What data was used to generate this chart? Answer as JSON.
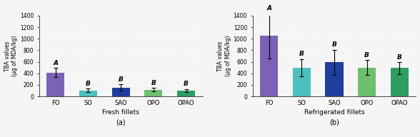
{
  "subplot_a": {
    "title": "Fresh fillets",
    "label": "(a)",
    "categories": [
      "FO",
      "SO",
      "SAO",
      "OPO",
      "OPAO"
    ],
    "values": [
      410,
      105,
      150,
      115,
      100
    ],
    "errors": [
      80,
      30,
      55,
      30,
      30
    ],
    "sig_labels": [
      "A",
      "B",
      "B",
      "B",
      "B"
    ],
    "colors": [
      "#7b62b5",
      "#4dbfbf",
      "#1f3f9e",
      "#6dbf6d",
      "#2d9e5f"
    ],
    "ylabel": "TBA values\n(μg of MDA/kg)"
  },
  "subplot_b": {
    "title": "Refrigerated fillets",
    "label": "(b)",
    "categories": [
      "FO",
      "SO",
      "SAO",
      "OPO",
      "OPAO"
    ],
    "values": [
      1050,
      500,
      590,
      500,
      490
    ],
    "errors": [
      390,
      150,
      220,
      130,
      100
    ],
    "sig_labels": [
      "A",
      "B",
      "B",
      "B",
      "B"
    ],
    "colors": [
      "#7b62b5",
      "#4dbfbf",
      "#1f3f9e",
      "#6dbf6d",
      "#2d9e5f"
    ],
    "ylabel": "TBA values\n(μg of MDA/kg)"
  },
  "ylim": [
    0,
    1400
  ],
  "yticks": [
    0,
    200,
    400,
    600,
    800,
    1000,
    1200,
    1400
  ],
  "background_color": "#f5f5f5",
  "grid_color": "#ffffff",
  "bar_width": 0.55
}
